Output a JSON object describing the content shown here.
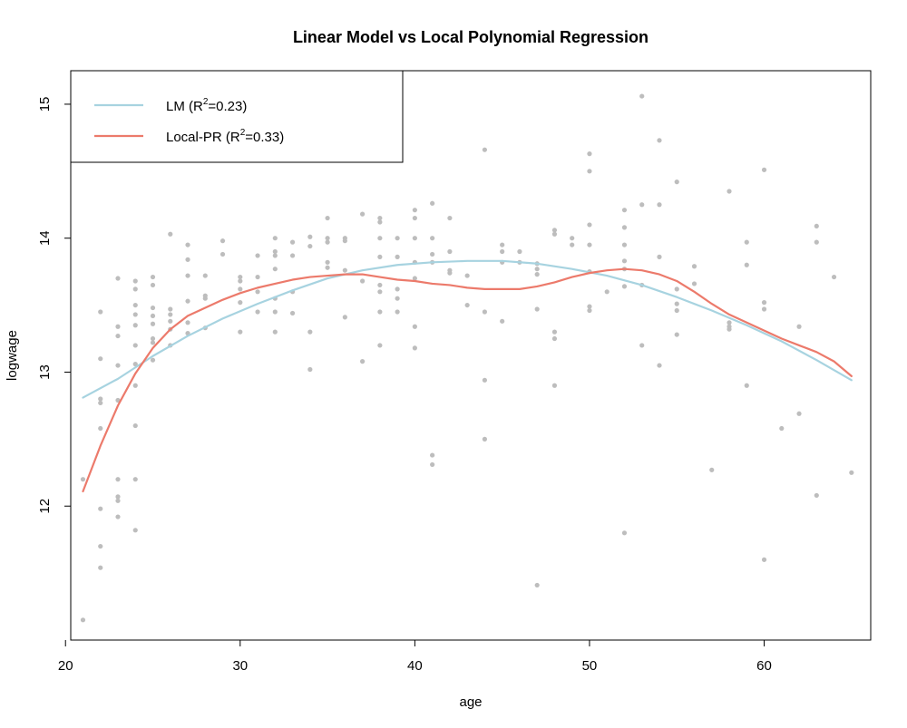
{
  "chart_data": {
    "type": "scatter",
    "title": "Linear Model vs Local Polynomial Regression",
    "xlabel": "age",
    "ylabel": "logwage",
    "xlim": [
      20.3,
      66.1
    ],
    "ylim": [
      11.0,
      15.25
    ],
    "x_ticks": [
      20,
      30,
      40,
      50,
      60
    ],
    "y_ticks": [
      12,
      13,
      14,
      15
    ],
    "grid": false,
    "legend_position": "top-left",
    "colors": {
      "points": "#bdbdbd",
      "lm": "#a7d3e0",
      "local_pr": "#ec7a6b"
    },
    "legend": [
      {
        "prefix": "LM (R",
        "sup": "2",
        "suffix": "=0.23)",
        "color": "#a7d3e0"
      },
      {
        "prefix": "Local-PR (R",
        "sup": "2",
        "suffix": "=0.33)",
        "color": "#ec7a6b"
      }
    ],
    "points": [
      [
        21,
        11.15
      ],
      [
        21,
        12.2
      ],
      [
        22,
        13.45
      ],
      [
        22,
        13.1
      ],
      [
        22,
        12.8
      ],
      [
        22,
        12.77
      ],
      [
        22,
        12.58
      ],
      [
        22,
        11.98
      ],
      [
        22,
        11.7
      ],
      [
        22,
        11.54
      ],
      [
        23,
        13.7
      ],
      [
        23,
        13.34
      ],
      [
        23,
        13.27
      ],
      [
        23,
        13.05
      ],
      [
        23,
        12.79
      ],
      [
        23,
        12.2
      ],
      [
        23,
        12.07
      ],
      [
        23,
        12.04
      ],
      [
        23,
        11.92
      ],
      [
        24,
        13.68
      ],
      [
        24,
        13.62
      ],
      [
        24,
        13.5
      ],
      [
        24,
        13.43
      ],
      [
        24,
        13.35
      ],
      [
        24,
        13.2
      ],
      [
        24,
        13.06
      ],
      [
        24,
        12.9
      ],
      [
        24,
        12.6
      ],
      [
        24,
        12.2
      ],
      [
        24,
        11.82
      ],
      [
        25,
        13.71
      ],
      [
        25,
        13.65
      ],
      [
        25,
        13.48
      ],
      [
        25,
        13.42
      ],
      [
        25,
        13.36
      ],
      [
        25,
        13.25
      ],
      [
        25,
        13.22
      ],
      [
        25,
        13.09
      ],
      [
        26,
        14.03
      ],
      [
        26,
        13.47
      ],
      [
        26,
        13.43
      ],
      [
        26,
        13.38
      ],
      [
        26,
        13.32
      ],
      [
        26,
        13.2
      ],
      [
        27,
        13.95
      ],
      [
        27,
        13.84
      ],
      [
        27,
        13.72
      ],
      [
        27,
        13.53
      ],
      [
        27,
        13.37
      ],
      [
        27,
        13.29
      ],
      [
        28,
        13.72
      ],
      [
        28,
        13.57
      ],
      [
        28,
        13.55
      ],
      [
        28,
        13.33
      ],
      [
        29,
        13.98
      ],
      [
        29,
        13.88
      ],
      [
        30,
        13.71
      ],
      [
        30,
        13.68
      ],
      [
        30,
        13.62
      ],
      [
        30,
        13.52
      ],
      [
        30,
        13.3
      ],
      [
        31,
        13.87
      ],
      [
        31,
        13.71
      ],
      [
        31,
        13.6
      ],
      [
        31,
        13.45
      ],
      [
        32,
        14.0
      ],
      [
        32,
        13.9
      ],
      [
        32,
        13.87
      ],
      [
        32,
        13.77
      ],
      [
        32,
        13.55
      ],
      [
        32,
        13.45
      ],
      [
        32,
        13.3
      ],
      [
        33,
        13.97
      ],
      [
        33,
        13.87
      ],
      [
        33,
        13.6
      ],
      [
        33,
        13.44
      ],
      [
        34,
        14.01
      ],
      [
        34,
        13.94
      ],
      [
        34,
        13.3
      ],
      [
        34,
        13.02
      ],
      [
        35,
        14.15
      ],
      [
        35,
        14.0
      ],
      [
        35,
        13.97
      ],
      [
        35,
        13.82
      ],
      [
        35,
        13.78
      ],
      [
        36,
        14.0
      ],
      [
        36,
        13.98
      ],
      [
        36,
        13.76
      ],
      [
        36,
        13.41
      ],
      [
        37,
        14.18
      ],
      [
        37,
        13.68
      ],
      [
        37,
        13.08
      ],
      [
        38,
        14.15
      ],
      [
        38,
        14.12
      ],
      [
        38,
        14.0
      ],
      [
        38,
        13.86
      ],
      [
        38,
        13.65
      ],
      [
        38,
        13.6
      ],
      [
        38,
        13.45
      ],
      [
        38,
        13.2
      ],
      [
        39,
        14.0
      ],
      [
        39,
        13.86
      ],
      [
        39,
        13.62
      ],
      [
        39,
        13.55
      ],
      [
        39,
        13.45
      ],
      [
        40,
        14.21
      ],
      [
        40,
        14.15
      ],
      [
        40,
        14.0
      ],
      [
        40,
        13.82
      ],
      [
        40,
        13.7
      ],
      [
        40,
        13.34
      ],
      [
        40,
        13.18
      ],
      [
        41,
        14.26
      ],
      [
        41,
        14.0
      ],
      [
        41,
        13.88
      ],
      [
        41,
        13.82
      ],
      [
        41,
        12.38
      ],
      [
        41,
        12.31
      ],
      [
        42,
        14.15
      ],
      [
        42,
        13.9
      ],
      [
        42,
        13.76
      ],
      [
        42,
        13.74
      ],
      [
        43,
        13.72
      ],
      [
        43,
        13.5
      ],
      [
        44,
        14.66
      ],
      [
        44,
        13.45
      ],
      [
        44,
        12.94
      ],
      [
        44,
        12.5
      ],
      [
        45,
        13.95
      ],
      [
        45,
        13.9
      ],
      [
        45,
        13.82
      ],
      [
        45,
        13.38
      ],
      [
        46,
        13.9
      ],
      [
        46,
        13.82
      ],
      [
        47,
        13.81
      ],
      [
        47,
        13.77
      ],
      [
        47,
        13.73
      ],
      [
        47,
        13.47
      ],
      [
        47,
        11.41
      ],
      [
        48,
        14.06
      ],
      [
        48,
        14.03
      ],
      [
        48,
        13.3
      ],
      [
        48,
        13.25
      ],
      [
        48,
        12.9
      ],
      [
        49,
        14.0
      ],
      [
        49,
        13.95
      ],
      [
        50,
        14.63
      ],
      [
        50,
        14.5
      ],
      [
        50,
        14.1
      ],
      [
        50,
        13.95
      ],
      [
        50,
        13.75
      ],
      [
        50,
        13.49
      ],
      [
        50,
        13.46
      ],
      [
        51,
        13.6
      ],
      [
        52,
        14.21
      ],
      [
        52,
        14.08
      ],
      [
        52,
        13.95
      ],
      [
        52,
        13.83
      ],
      [
        52,
        13.77
      ],
      [
        52,
        13.64
      ],
      [
        52,
        11.8
      ],
      [
        53,
        15.06
      ],
      [
        53,
        14.25
      ],
      [
        53,
        13.65
      ],
      [
        53,
        13.2
      ],
      [
        54,
        14.73
      ],
      [
        54,
        14.25
      ],
      [
        54,
        13.86
      ],
      [
        54,
        13.05
      ],
      [
        55,
        14.42
      ],
      [
        55,
        13.62
      ],
      [
        55,
        13.51
      ],
      [
        55,
        13.46
      ],
      [
        55,
        13.28
      ],
      [
        56,
        13.79
      ],
      [
        56,
        13.66
      ],
      [
        57,
        12.27
      ],
      [
        58,
        14.35
      ],
      [
        58,
        13.37
      ],
      [
        58,
        13.34
      ],
      [
        58,
        13.32
      ],
      [
        59,
        13.97
      ],
      [
        59,
        13.8
      ],
      [
        59,
        12.9
      ],
      [
        60,
        14.51
      ],
      [
        60,
        13.52
      ],
      [
        60,
        13.47
      ],
      [
        60,
        11.6
      ],
      [
        61,
        12.58
      ],
      [
        62,
        13.34
      ],
      [
        62,
        12.69
      ],
      [
        63,
        14.09
      ],
      [
        63,
        13.97
      ],
      [
        63,
        12.08
      ],
      [
        64,
        13.71
      ],
      [
        65,
        12.25
      ]
    ],
    "series": [
      {
        "name": "LM",
        "x": [
          21,
          23,
          25,
          27,
          29,
          31,
          33,
          35,
          37,
          39,
          41,
          43,
          45,
          47,
          49,
          51,
          53,
          55,
          57,
          59,
          61,
          63,
          65
        ],
        "values": [
          12.81,
          12.95,
          13.12,
          13.27,
          13.4,
          13.51,
          13.61,
          13.7,
          13.76,
          13.8,
          13.82,
          13.83,
          13.83,
          13.81,
          13.77,
          13.72,
          13.65,
          13.56,
          13.46,
          13.35,
          13.23,
          13.09,
          12.94
        ]
      },
      {
        "name": "Local-PR",
        "x": [
          21,
          22,
          23,
          24,
          25,
          26,
          27,
          28,
          29,
          30,
          31,
          32,
          33,
          34,
          35,
          36,
          37,
          38,
          39,
          40,
          41,
          42,
          43,
          44,
          45,
          46,
          47,
          48,
          49,
          50,
          51,
          52,
          53,
          54,
          55,
          56,
          57,
          58,
          59,
          60,
          61,
          62,
          63,
          64,
          65
        ],
        "values": [
          12.11,
          12.45,
          12.75,
          12.99,
          13.18,
          13.32,
          13.42,
          13.48,
          13.54,
          13.59,
          13.63,
          13.66,
          13.69,
          13.71,
          13.72,
          13.73,
          13.73,
          13.71,
          13.69,
          13.68,
          13.66,
          13.65,
          13.63,
          13.62,
          13.62,
          13.62,
          13.64,
          13.67,
          13.71,
          13.74,
          13.76,
          13.77,
          13.76,
          13.73,
          13.68,
          13.6,
          13.51,
          13.43,
          13.37,
          13.31,
          13.25,
          13.2,
          13.15,
          13.08,
          12.97
        ]
      }
    ]
  }
}
